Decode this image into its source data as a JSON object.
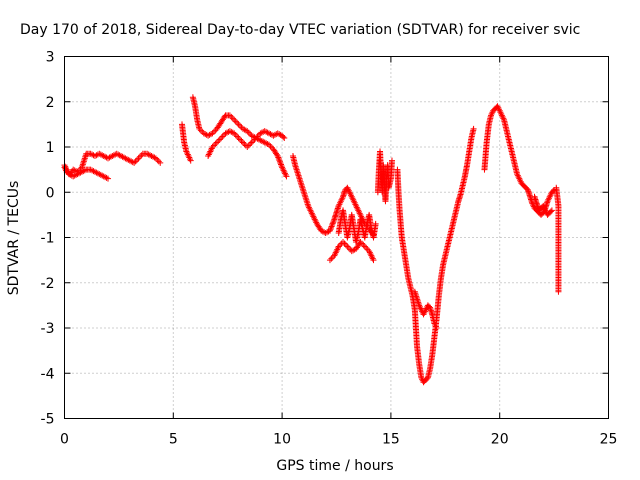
{
  "chart_data": {
    "type": "scatter",
    "title": "Day 170 of 2018, Sidereal Day-to-day VTEC variation (SDTVAR) for receiver svic",
    "xlabel": "GPS time / hours",
    "ylabel": "SDTVAR / TECUs",
    "xlim": [
      0,
      25
    ],
    "ylim": [
      -5,
      3
    ],
    "xticks": [
      0,
      5,
      10,
      15,
      20,
      25
    ],
    "yticks": [
      -5,
      -4,
      -3,
      -2,
      -1,
      0,
      1,
      2,
      3
    ],
    "xtick_labels": [
      "0",
      "5",
      "10",
      "15",
      "20",
      "25"
    ],
    "ytick_labels": [
      "-5",
      "-4",
      "-3",
      "-2",
      "-1",
      "0",
      "1",
      "2",
      "3"
    ],
    "grid": true,
    "marker": "+",
    "series_color": "#ff0000",
    "segments": [
      {
        "name": "trace-1",
        "points": [
          [
            0.0,
            0.55
          ],
          [
            0.1,
            0.45
          ],
          [
            0.25,
            0.4
          ],
          [
            0.4,
            0.5
          ],
          [
            0.6,
            0.45
          ],
          [
            0.8,
            0.55
          ],
          [
            1.0,
            0.85
          ],
          [
            1.2,
            0.85
          ],
          [
            1.4,
            0.8
          ],
          [
            1.6,
            0.85
          ],
          [
            1.8,
            0.8
          ],
          [
            2.0,
            0.75
          ],
          [
            2.2,
            0.8
          ],
          [
            2.4,
            0.85
          ],
          [
            2.6,
            0.8
          ],
          [
            2.8,
            0.75
          ],
          [
            3.0,
            0.7
          ],
          [
            3.2,
            0.65
          ],
          [
            3.4,
            0.75
          ],
          [
            3.6,
            0.85
          ],
          [
            3.8,
            0.85
          ],
          [
            4.0,
            0.8
          ],
          [
            4.2,
            0.75
          ],
          [
            4.4,
            0.65
          ]
        ]
      },
      {
        "name": "trace-2",
        "points": [
          [
            0.0,
            0.6
          ],
          [
            0.2,
            0.4
          ],
          [
            0.4,
            0.35
          ],
          [
            0.6,
            0.4
          ],
          [
            0.8,
            0.45
          ],
          [
            1.0,
            0.5
          ],
          [
            1.2,
            0.5
          ],
          [
            1.4,
            0.45
          ],
          [
            1.6,
            0.4
          ],
          [
            1.8,
            0.35
          ],
          [
            2.0,
            0.3
          ]
        ]
      },
      {
        "name": "trace-3",
        "points": [
          [
            5.4,
            1.5
          ],
          [
            5.5,
            1.1
          ],
          [
            5.6,
            0.9
          ],
          [
            5.7,
            0.8
          ],
          [
            5.8,
            0.7
          ]
        ]
      },
      {
        "name": "trace-4",
        "points": [
          [
            5.9,
            2.1
          ],
          [
            6.0,
            1.9
          ],
          [
            6.1,
            1.6
          ],
          [
            6.2,
            1.4
          ],
          [
            6.4,
            1.3
          ],
          [
            6.6,
            1.25
          ],
          [
            6.8,
            1.3
          ],
          [
            7.0,
            1.4
          ],
          [
            7.2,
            1.55
          ],
          [
            7.4,
            1.7
          ],
          [
            7.6,
            1.7
          ],
          [
            7.8,
            1.6
          ],
          [
            8.0,
            1.5
          ],
          [
            8.2,
            1.4
          ],
          [
            8.4,
            1.35
          ],
          [
            8.6,
            1.25
          ],
          [
            8.8,
            1.2
          ],
          [
            9.0,
            1.15
          ],
          [
            9.2,
            1.1
          ],
          [
            9.4,
            1.05
          ],
          [
            9.6,
            0.95
          ],
          [
            9.8,
            0.8
          ],
          [
            10.0,
            0.55
          ],
          [
            10.2,
            0.35
          ]
        ]
      },
      {
        "name": "trace-5",
        "points": [
          [
            6.6,
            0.8
          ],
          [
            6.8,
            1.0
          ],
          [
            7.0,
            1.1
          ],
          [
            7.2,
            1.2
          ],
          [
            7.4,
            1.3
          ],
          [
            7.6,
            1.35
          ],
          [
            7.8,
            1.3
          ],
          [
            8.0,
            1.2
          ],
          [
            8.2,
            1.1
          ],
          [
            8.4,
            1.0
          ],
          [
            8.6,
            1.1
          ],
          [
            8.8,
            1.2
          ],
          [
            9.0,
            1.3
          ],
          [
            9.2,
            1.35
          ],
          [
            9.4,
            1.3
          ],
          [
            9.6,
            1.25
          ],
          [
            9.8,
            1.3
          ],
          [
            10.0,
            1.25
          ],
          [
            10.1,
            1.2
          ]
        ]
      },
      {
        "name": "trace-6",
        "points": [
          [
            10.5,
            0.8
          ],
          [
            10.6,
            0.6
          ],
          [
            10.8,
            0.3
          ],
          [
            11.0,
            0.0
          ],
          [
            11.2,
            -0.3
          ],
          [
            11.4,
            -0.5
          ],
          [
            11.6,
            -0.7
          ],
          [
            11.8,
            -0.85
          ],
          [
            12.0,
            -0.9
          ],
          [
            12.2,
            -0.85
          ],
          [
            12.4,
            -0.6
          ],
          [
            12.5,
            -0.45
          ],
          [
            12.6,
            -0.3
          ],
          [
            12.8,
            -0.1
          ],
          [
            12.9,
            0.05
          ],
          [
            13.0,
            0.1
          ],
          [
            13.2,
            -0.1
          ],
          [
            13.4,
            -0.3
          ],
          [
            13.6,
            -0.5
          ],
          [
            13.8,
            -0.7
          ],
          [
            14.0,
            -0.8
          ],
          [
            14.2,
            -0.95
          ]
        ]
      },
      {
        "name": "trace-7",
        "points": [
          [
            12.2,
            -1.5
          ],
          [
            12.4,
            -1.4
          ],
          [
            12.6,
            -1.2
          ],
          [
            12.8,
            -1.1
          ],
          [
            13.0,
            -1.2
          ],
          [
            13.2,
            -1.3
          ],
          [
            13.4,
            -1.25
          ],
          [
            13.6,
            -1.1
          ],
          [
            13.8,
            -1.2
          ],
          [
            14.0,
            -1.3
          ],
          [
            14.1,
            -1.4
          ],
          [
            14.2,
            -1.5
          ]
        ]
      },
      {
        "name": "trace-8",
        "points": [
          [
            12.6,
            -0.9
          ],
          [
            12.7,
            -0.6
          ],
          [
            12.8,
            -0.4
          ],
          [
            12.9,
            -0.7
          ],
          [
            13.0,
            -1.0
          ],
          [
            13.1,
            -0.8
          ],
          [
            13.2,
            -0.5
          ],
          [
            13.3,
            -0.8
          ],
          [
            13.4,
            -1.1
          ],
          [
            13.5,
            -0.9
          ],
          [
            13.6,
            -0.6
          ],
          [
            13.7,
            -0.8
          ],
          [
            13.8,
            -1.0
          ],
          [
            13.9,
            -0.7
          ],
          [
            14.0,
            -0.5
          ],
          [
            14.1,
            -0.8
          ],
          [
            14.2,
            -1.0
          ],
          [
            14.3,
            -0.7
          ]
        ]
      },
      {
        "name": "trace-9",
        "points": [
          [
            14.4,
            0.0
          ],
          [
            14.45,
            0.5
          ],
          [
            14.5,
            0.9
          ],
          [
            14.55,
            0.4
          ],
          [
            14.6,
            0.0
          ],
          [
            14.65,
            0.6
          ],
          [
            14.7,
            0.2
          ],
          [
            14.75,
            -0.2
          ],
          [
            14.8,
            0.3
          ],
          [
            14.85,
            0.6
          ],
          [
            14.9,
            0.1
          ],
          [
            15.0,
            0.3
          ],
          [
            15.05,
            0.7
          ]
        ]
      },
      {
        "name": "trace-10",
        "points": [
          [
            15.3,
            0.5
          ],
          [
            15.35,
            0.0
          ],
          [
            15.4,
            -0.4
          ],
          [
            15.45,
            -0.7
          ],
          [
            15.5,
            -1.0
          ],
          [
            15.6,
            -1.3
          ],
          [
            15.7,
            -1.6
          ],
          [
            15.8,
            -1.9
          ],
          [
            15.9,
            -2.1
          ],
          [
            16.0,
            -2.3
          ],
          [
            16.1,
            -2.6
          ],
          [
            16.15,
            -3.0
          ],
          [
            16.2,
            -3.4
          ],
          [
            16.3,
            -3.8
          ],
          [
            16.4,
            -4.1
          ],
          [
            16.5,
            -4.2
          ],
          [
            16.6,
            -4.15
          ],
          [
            16.7,
            -4.1
          ],
          [
            16.8,
            -3.9
          ],
          [
            16.9,
            -3.6
          ],
          [
            17.0,
            -3.2
          ],
          [
            17.1,
            -2.8
          ],
          [
            17.2,
            -2.3
          ],
          [
            17.3,
            -1.9
          ],
          [
            17.4,
            -1.6
          ],
          [
            17.5,
            -1.4
          ],
          [
            17.6,
            -1.2
          ],
          [
            17.7,
            -1.0
          ],
          [
            17.8,
            -0.8
          ],
          [
            17.9,
            -0.6
          ],
          [
            18.0,
            -0.4
          ],
          [
            18.1,
            -0.2
          ],
          [
            18.2,
            -0.05
          ],
          [
            18.3,
            0.15
          ],
          [
            18.4,
            0.35
          ],
          [
            18.5,
            0.6
          ],
          [
            18.6,
            0.9
          ],
          [
            18.7,
            1.2
          ],
          [
            18.8,
            1.4
          ]
        ]
      },
      {
        "name": "trace-11",
        "points": [
          [
            16.1,
            -2.2
          ],
          [
            16.3,
            -2.5
          ],
          [
            16.5,
            -2.7
          ],
          [
            16.6,
            -2.6
          ],
          [
            16.7,
            -2.5
          ],
          [
            16.8,
            -2.55
          ],
          [
            16.9,
            -2.7
          ],
          [
            17.0,
            -2.9
          ],
          [
            17.1,
            -3.0
          ]
        ]
      },
      {
        "name": "trace-12",
        "points": [
          [
            19.3,
            0.5
          ],
          [
            19.35,
            0.8
          ],
          [
            19.4,
            1.1
          ],
          [
            19.45,
            1.3
          ],
          [
            19.5,
            1.5
          ],
          [
            19.6,
            1.7
          ],
          [
            19.7,
            1.8
          ],
          [
            19.8,
            1.85
          ],
          [
            19.9,
            1.9
          ],
          [
            20.0,
            1.8
          ],
          [
            20.1,
            1.7
          ],
          [
            20.2,
            1.6
          ],
          [
            20.3,
            1.4
          ],
          [
            20.4,
            1.2
          ],
          [
            20.5,
            1.0
          ],
          [
            20.6,
            0.8
          ],
          [
            20.7,
            0.6
          ],
          [
            20.8,
            0.4
          ],
          [
            20.9,
            0.3
          ],
          [
            21.0,
            0.2
          ],
          [
            21.1,
            0.15
          ],
          [
            21.2,
            0.1
          ],
          [
            21.3,
            0.05
          ],
          [
            21.4,
            -0.1
          ],
          [
            21.5,
            -0.25
          ],
          [
            21.6,
            -0.35
          ],
          [
            21.7,
            -0.4
          ],
          [
            21.8,
            -0.45
          ],
          [
            21.9,
            -0.5
          ],
          [
            22.0,
            -0.45
          ],
          [
            22.1,
            -0.35
          ],
          [
            22.2,
            -0.2
          ],
          [
            22.3,
            -0.1
          ],
          [
            22.4,
            0.0
          ],
          [
            22.5,
            0.05
          ]
        ]
      },
      {
        "name": "trace-13",
        "points": [
          [
            21.6,
            -0.1
          ],
          [
            21.7,
            -0.25
          ],
          [
            21.8,
            -0.4
          ],
          [
            21.9,
            -0.35
          ],
          [
            22.0,
            -0.3
          ],
          [
            22.1,
            -0.4
          ],
          [
            22.2,
            -0.5
          ],
          [
            22.3,
            -0.45
          ],
          [
            22.4,
            -0.4
          ]
        ]
      },
      {
        "name": "outliers",
        "points": [
          [
            22.6,
            0.1
          ],
          [
            22.7,
            -0.3
          ],
          [
            22.7,
            -2.2
          ]
        ]
      }
    ]
  }
}
